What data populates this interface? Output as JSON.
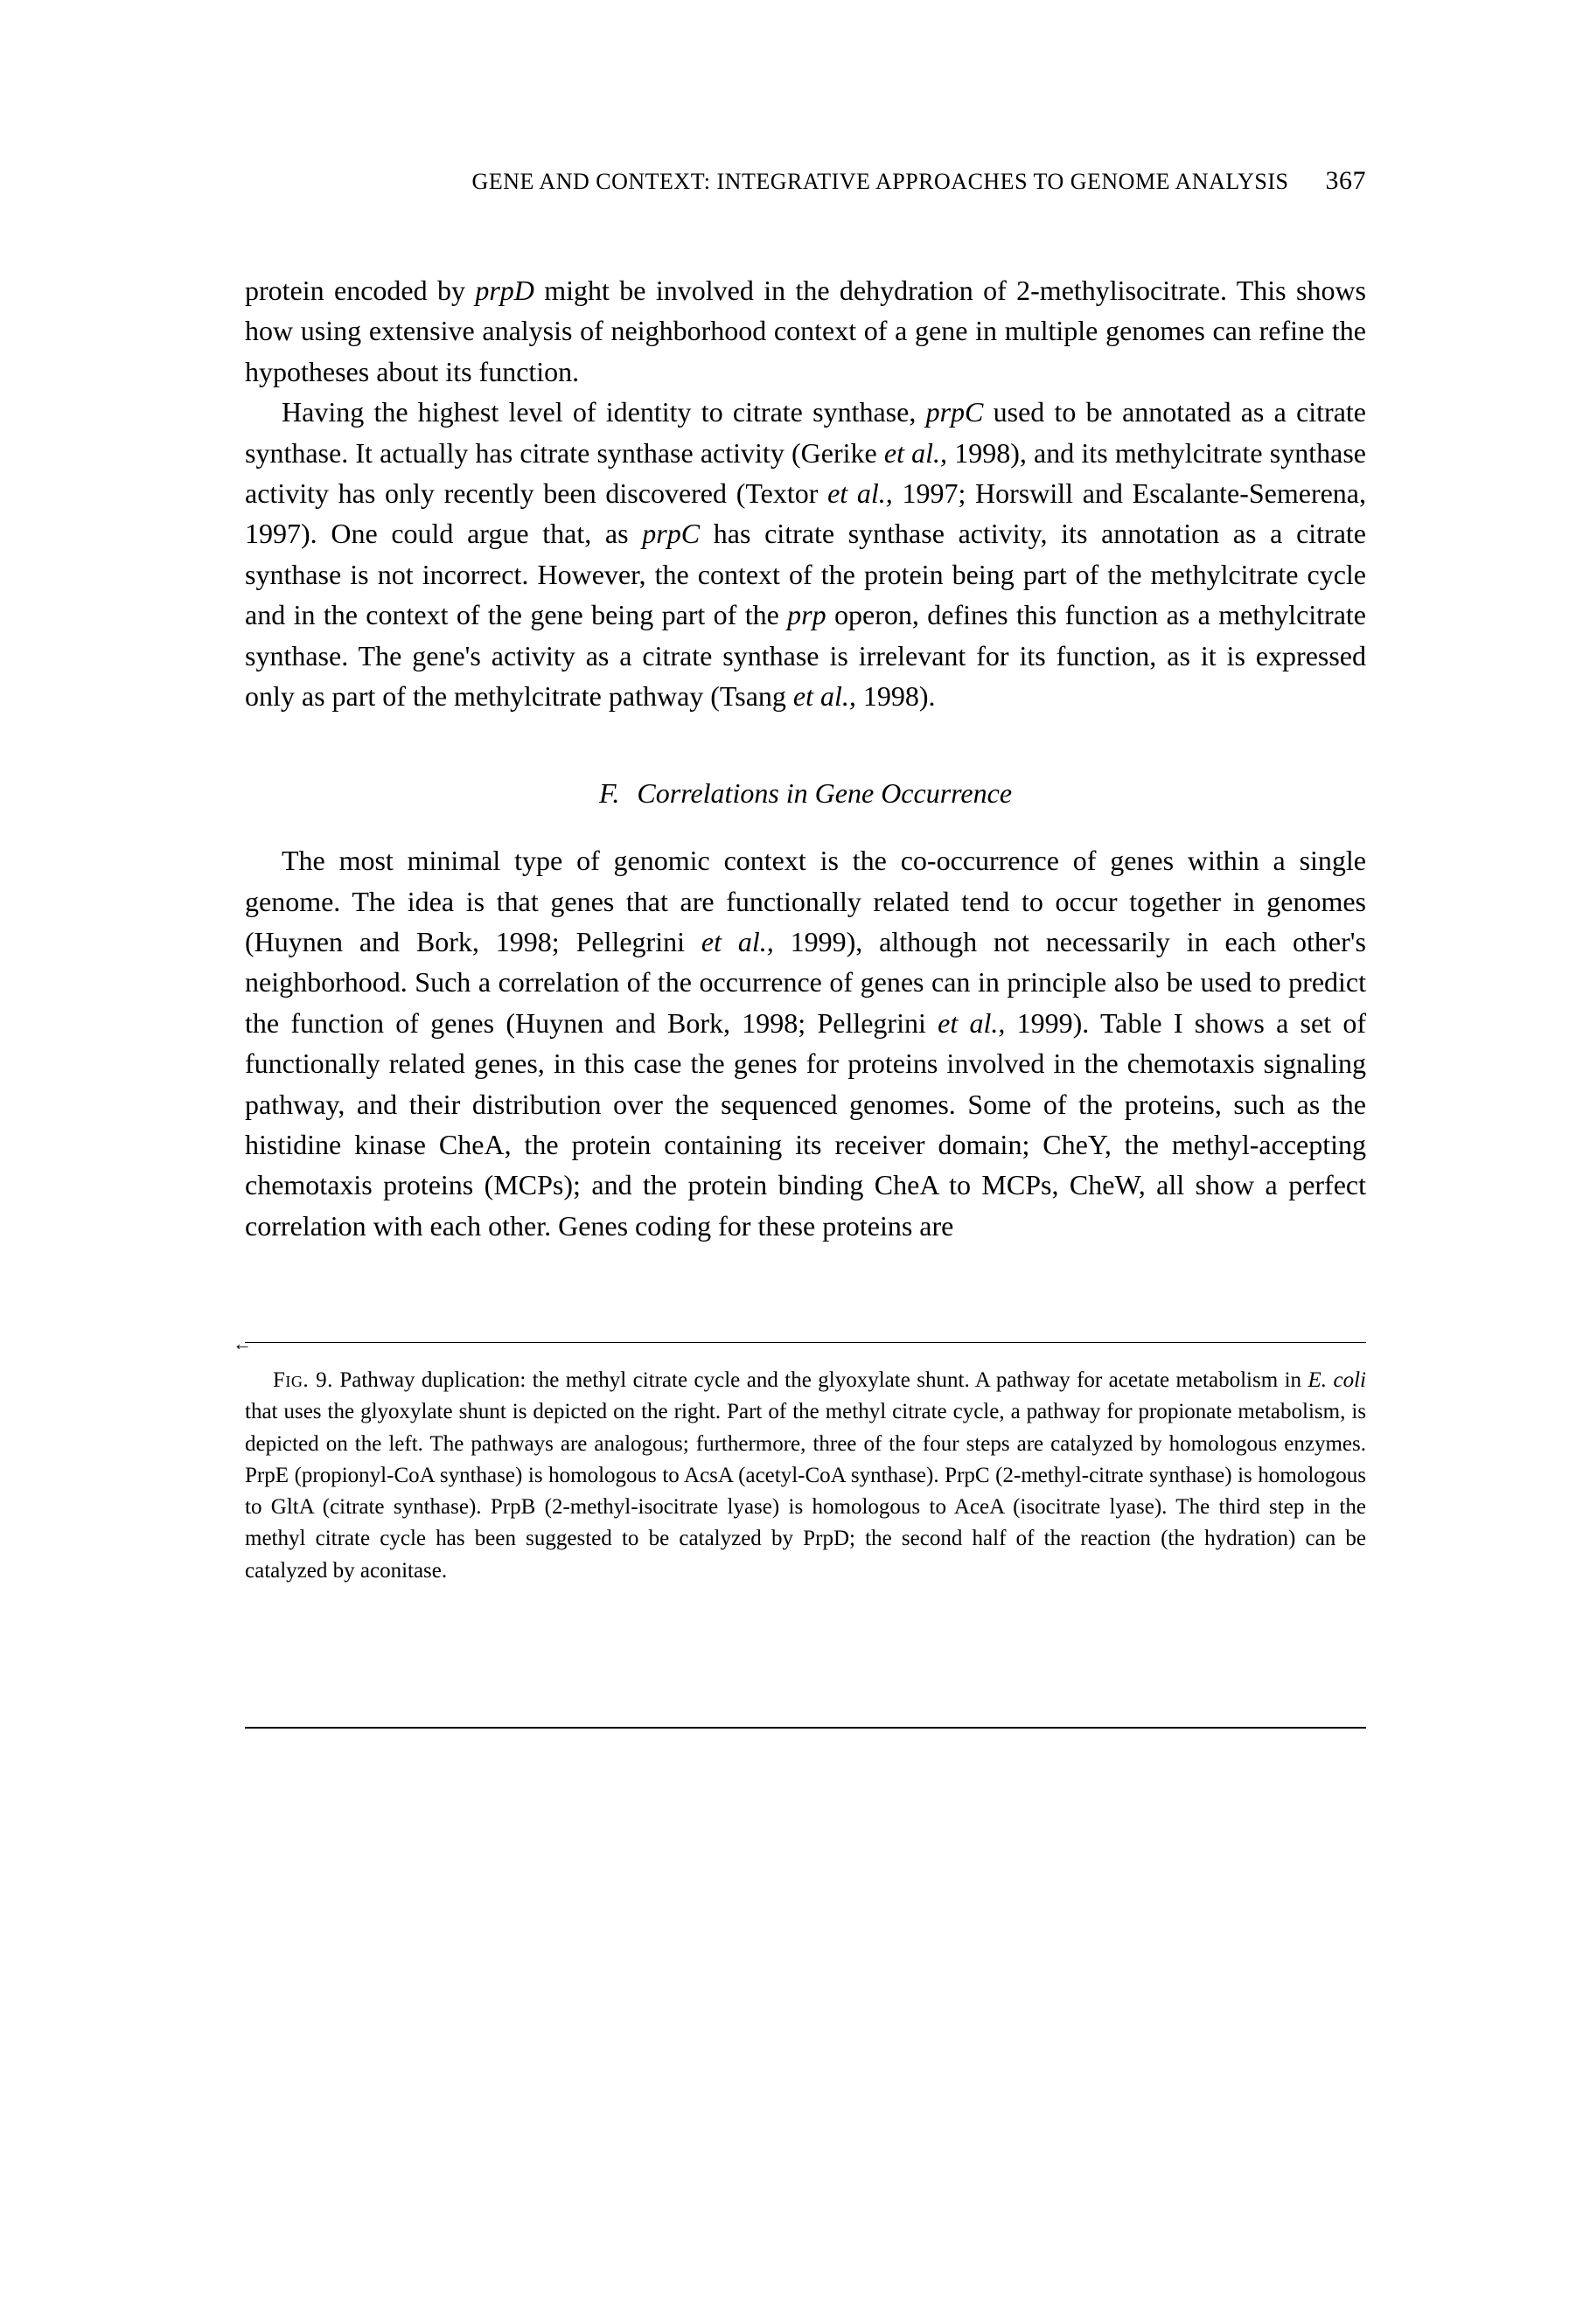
{
  "header": {
    "title": "GENE AND CONTEXT: INTEGRATIVE APPROACHES TO GENOME ANALYSIS",
    "page_number": "367"
  },
  "body": {
    "para1_a": "protein encoded by ",
    "para1_prpD": "prpD",
    "para1_b": " might be involved in the dehydration of 2-methylisocitrate. This shows how using extensive analysis of neighborhood context of a gene in multiple genomes can refine the hypotheses about its function.",
    "para2_a": "Having the highest level of identity to citrate synthase, ",
    "para2_prpC1": "prpC",
    "para2_b": " used to be annotated as a citrate synthase. It actually has citrate synthase activity (Gerike ",
    "para2_etal1": "et al.,",
    "para2_c": " 1998), and its methylcitrate synthase activity has only recently been discovered (Textor ",
    "para2_etal2": "et al.,",
    "para2_d": " 1997; Horswill and Escalante-Semerena, 1997). One could argue that, as ",
    "para2_prpC2": "prpC",
    "para2_e": " has citrate synthase activity, its annotation as a citrate synthase is not incorrect. However, the context of the protein being part of the methylcitrate cycle and in the context of the gene being part of the ",
    "para2_prp": "prp",
    "para2_f": " operon, defines this function as a methylcitrate synthase. The gene's activity as a citrate synthase is irrelevant for its function, as it is expressed only as part of the methylcitrate pathway (Tsang ",
    "para2_etal3": "et al.,",
    "para2_g": " 1998)."
  },
  "section": {
    "letter": "F.",
    "title": "Correlations in Gene Occurrence"
  },
  "body2": {
    "para3_a": "The most minimal type of genomic context is the co-occurrence of genes within a single genome. The idea is that genes that are functionally related tend to occur together in genomes (Huynen and Bork, 1998; Pellegrini ",
    "para3_etal1": "et al.,",
    "para3_b": " 1999), although not necessarily in each other's neighborhood. Such a correlation of the occurrence of genes can in principle also be used to predict the function of genes (Huynen and Bork, 1998; Pellegrini ",
    "para3_etal2": "et al.,",
    "para3_c": " 1999). Table I shows a set of functionally related genes, in this case the genes for proteins involved in the chemotaxis signaling pathway, and their distribution over the sequenced genomes. Some of the proteins, such as the histidine kinase CheA, the protein containing its receiver domain; CheY, the methyl-accepting chemotaxis proteins (MCPs); and the protein binding CheA to MCPs, CheW, all show a perfect correlation with each other. Genes coding for these proteins are"
  },
  "caption": {
    "label": "Fig. 9.",
    "text_a": "   Pathway duplication: the methyl citrate cycle and the glyoxylate shunt. A pathway for acetate metabolism in ",
    "ecoli": "E. coli",
    "text_b": " that uses the glyoxylate shunt is depicted on the right. Part of the methyl citrate cycle, a pathway for propionate metabolism, is depicted on the left. The pathways are analogous; furthermore, three of the four steps are catalyzed by homologous enzymes. PrpE (propionyl-CoA synthase) is homologous to AcsA (acetyl-CoA synthase). PrpC (2-methyl-citrate synthase) is homologous to GltA (citrate synthase). PrpB (2-methyl-isocitrate lyase) is homologous to AceA (isocitrate lyase). The third step in the methyl citrate cycle has been suggested to be catalyzed by PrpD; the second half of the reaction (the hydration) can be catalyzed by aconitase."
  }
}
